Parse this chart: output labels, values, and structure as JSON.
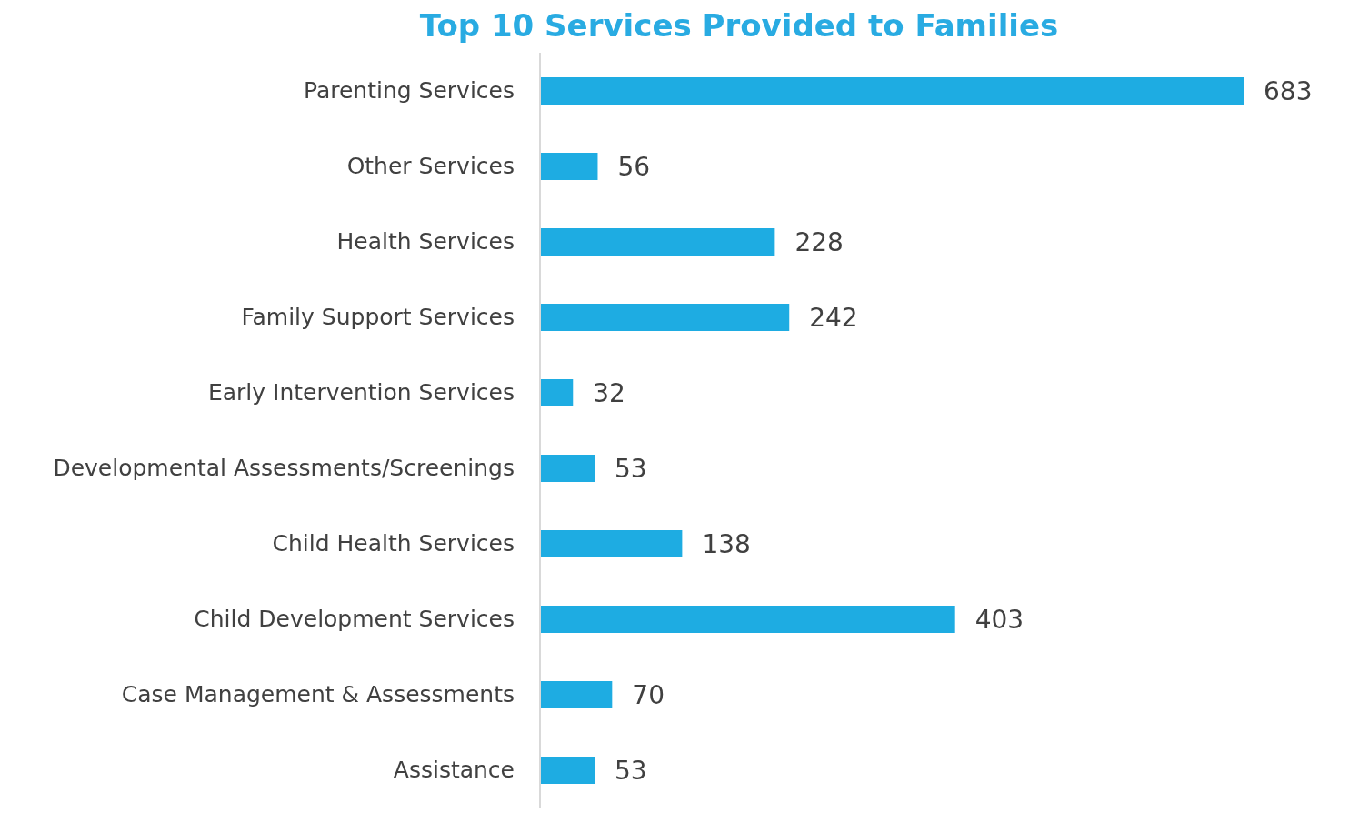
{
  "chart_data": {
    "type": "bar",
    "orientation": "horizontal",
    "title": "Top 10 Services Provided to Families",
    "categories": [
      "Parenting Services",
      "Other Services",
      "Health Services",
      "Family Support Services",
      "Early Intervention Services",
      "Developmental Assessments/Screenings",
      "Child Health Services",
      "Child Development Services",
      "Case Management & Assessments",
      "Assistance"
    ],
    "values": [
      683,
      56,
      228,
      242,
      32,
      53,
      138,
      403,
      70,
      53
    ],
    "color": "#1eace2",
    "data_labels": true
  }
}
